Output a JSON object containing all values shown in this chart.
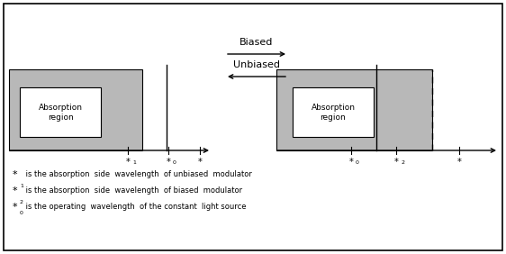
{
  "fig_width": 5.62,
  "fig_height": 2.82,
  "bg_color": "#ffffff",
  "border_color": "#000000",
  "gray_fill": "#b8b8b8",
  "biased_label": "Biased",
  "unbiased_label": "Unbiased",
  "absorption_text": "Absorption\nregion",
  "legend_line1": " is the absorption  side  wavelength  of unbiased  modulator",
  "legend_line2": " is the absorption  side  wavelength  of biased  modulator",
  "legend_line3": " is the operating  wavelength  of the constant  light source"
}
